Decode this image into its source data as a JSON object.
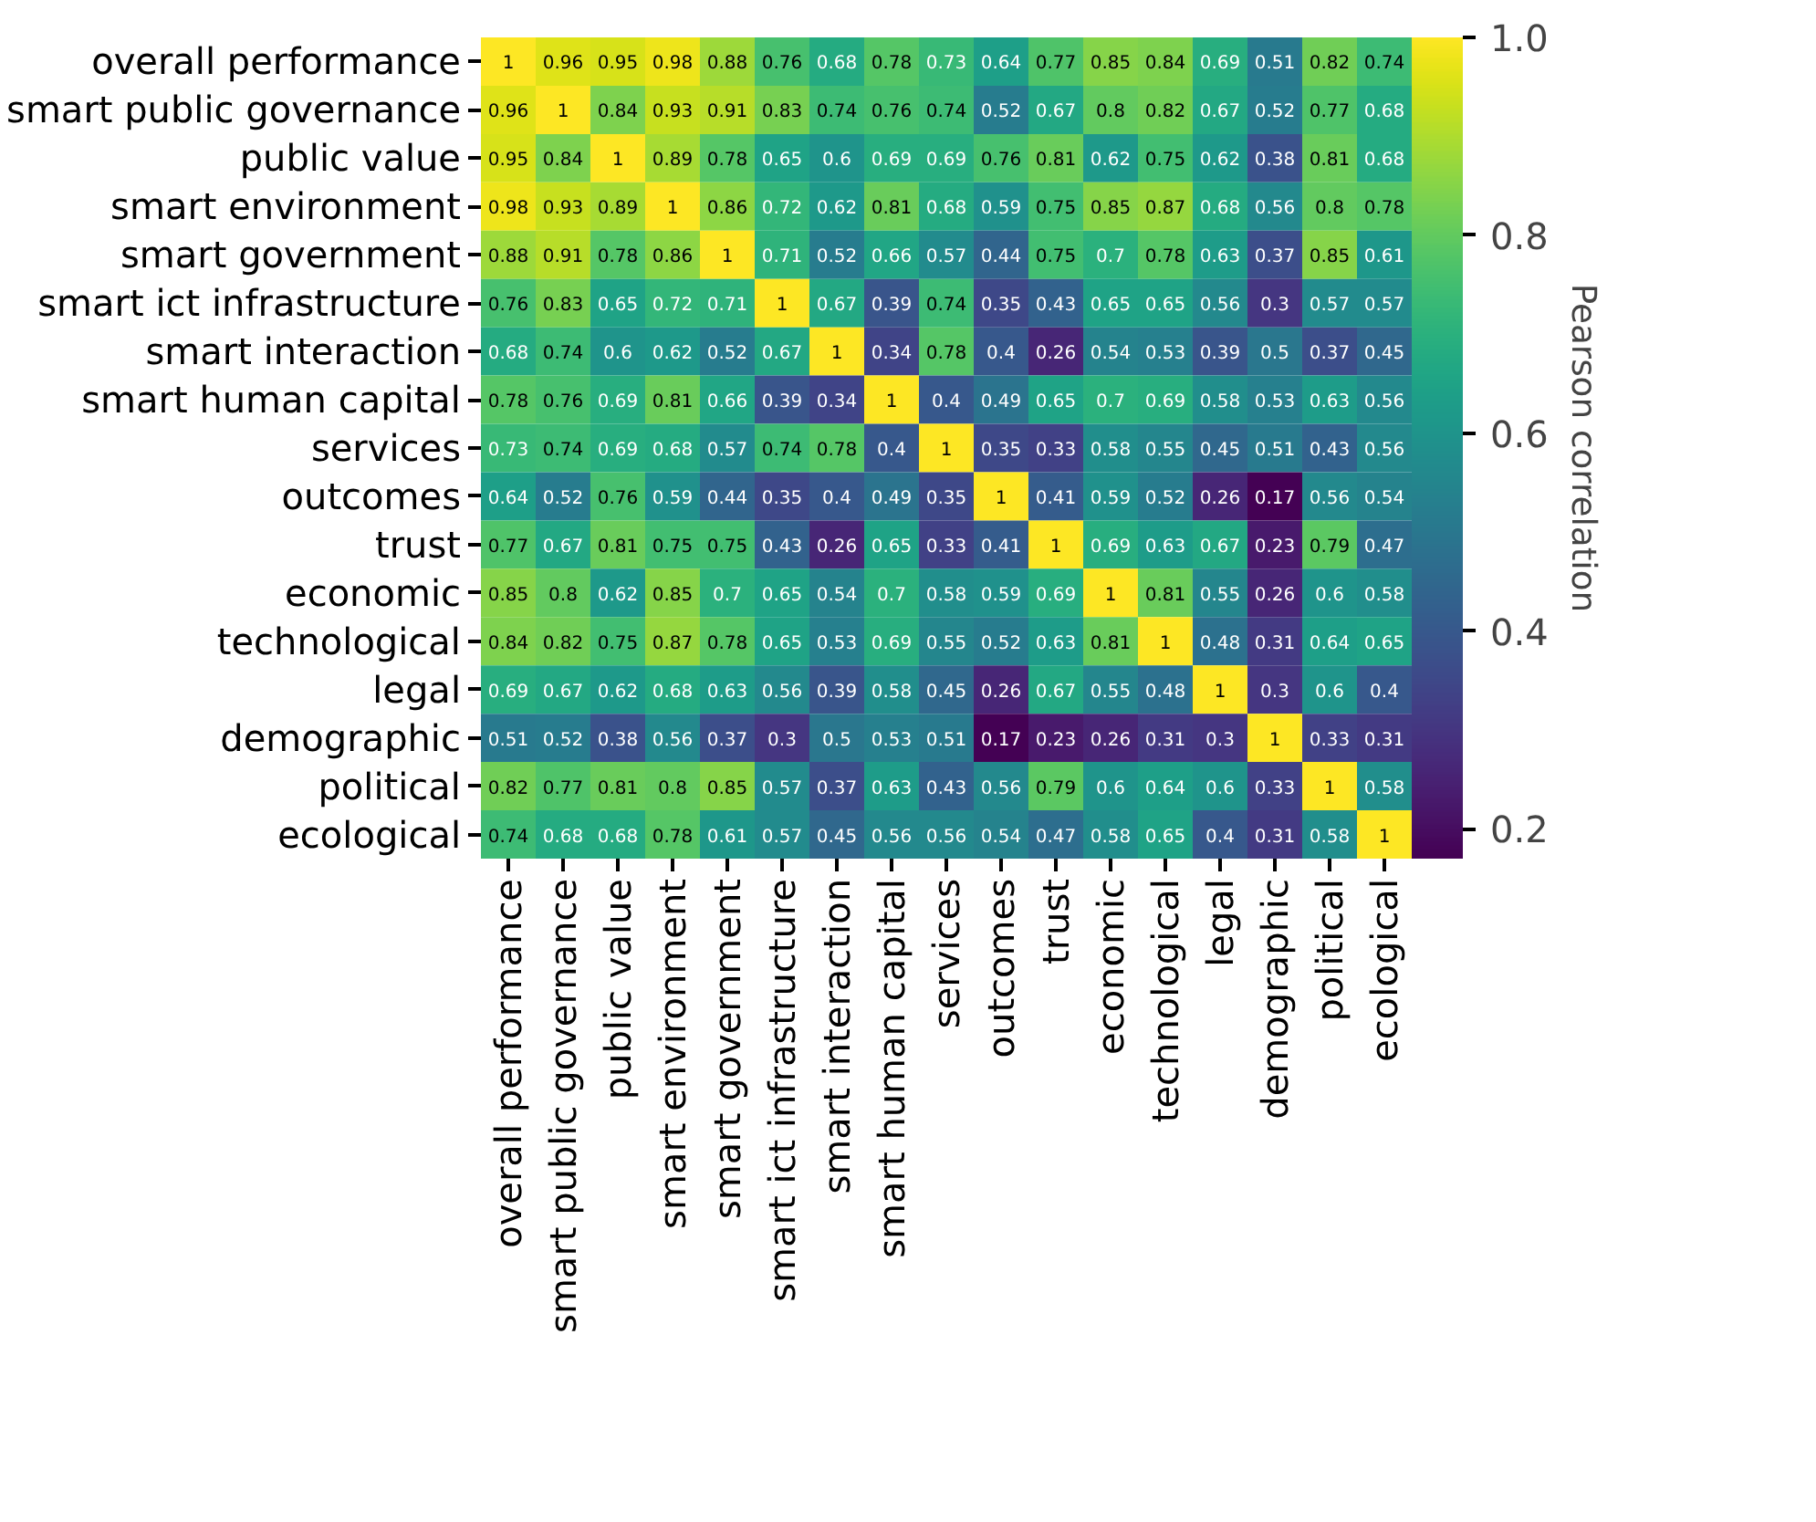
{
  "chart_data": {
    "type": "heatmap",
    "categories": [
      "overall performance",
      "smart public governance",
      "public value",
      "smart environment",
      "smart government",
      "smart ict infrastructure",
      "smart interaction",
      "smart human capital",
      "services",
      "outcomes",
      "trust",
      "economic",
      "technological",
      "legal",
      "demographic",
      "political",
      "ecological"
    ],
    "y_categories": [
      "overall performance",
      "smart public governance",
      "public value",
      "smart environment",
      "smart government",
      "smart ict infrastructure",
      "smart interaction",
      "smart human capital",
      "services",
      "outcomes",
      "trust",
      "economic",
      "technological",
      "legal",
      "demographic",
      "political",
      "ecological"
    ],
    "cells": [
      [
        1,
        0.96,
        0.95,
        0.98,
        0.88,
        0.76,
        0.68,
        0.78,
        0.73,
        0.64,
        0.77,
        0.85,
        0.84,
        0.69,
        0.51,
        0.82,
        0.74
      ],
      [
        0.96,
        1,
        0.84,
        0.93,
        0.91,
        0.83,
        0.74,
        0.76,
        0.74,
        0.52,
        0.67,
        0.8,
        0.82,
        0.67,
        0.52,
        0.77,
        0.68
      ],
      [
        0.95,
        0.84,
        1,
        0.89,
        0.78,
        0.65,
        0.6,
        0.69,
        0.69,
        0.76,
        0.81,
        0.62,
        0.75,
        0.62,
        0.38,
        0.81,
        0.68
      ],
      [
        0.98,
        0.93,
        0.89,
        1,
        0.86,
        0.72,
        0.62,
        0.81,
        0.68,
        0.59,
        0.75,
        0.85,
        0.87,
        0.68,
        0.56,
        0.8,
        0.78
      ],
      [
        0.88,
        0.91,
        0.78,
        0.86,
        1,
        0.71,
        0.52,
        0.66,
        0.57,
        0.44,
        0.75,
        0.7,
        0.78,
        0.63,
        0.37,
        0.85,
        0.61
      ],
      [
        0.76,
        0.83,
        0.65,
        0.72,
        0.71,
        1,
        0.67,
        0.39,
        0.74,
        0.35,
        0.43,
        0.65,
        0.65,
        0.56,
        0.3,
        0.57,
        0.57
      ],
      [
        0.68,
        0.74,
        0.6,
        0.62,
        0.52,
        0.67,
        1,
        0.34,
        0.78,
        0.4,
        0.26,
        0.54,
        0.53,
        0.39,
        0.5,
        0.37,
        0.45
      ],
      [
        0.78,
        0.76,
        0.69,
        0.81,
        0.66,
        0.39,
        0.34,
        1,
        0.4,
        0.49,
        0.65,
        0.7,
        0.69,
        0.58,
        0.53,
        0.63,
        0.56
      ],
      [
        0.73,
        0.74,
        0.69,
        0.68,
        0.57,
        0.74,
        0.78,
        0.4,
        1,
        0.35,
        0.33,
        0.58,
        0.55,
        0.45,
        0.51,
        0.43,
        0.56
      ],
      [
        0.64,
        0.52,
        0.76,
        0.59,
        0.44,
        0.35,
        0.4,
        0.49,
        0.35,
        1,
        0.41,
        0.59,
        0.52,
        0.26,
        0.17,
        0.56,
        0.54
      ],
      [
        0.77,
        0.67,
        0.81,
        0.75,
        0.75,
        0.43,
        0.26,
        0.65,
        0.33,
        0.41,
        1,
        0.69,
        0.63,
        0.67,
        0.23,
        0.79,
        0.47
      ],
      [
        0.85,
        0.8,
        0.62,
        0.85,
        0.7,
        0.65,
        0.54,
        0.7,
        0.58,
        0.59,
        0.69,
        1,
        0.81,
        0.55,
        0.26,
        0.6,
        0.58
      ],
      [
        0.84,
        0.82,
        0.75,
        0.87,
        0.78,
        0.65,
        0.53,
        0.69,
        0.55,
        0.52,
        0.63,
        0.81,
        1,
        0.48,
        0.31,
        0.64,
        0.65
      ],
      [
        0.69,
        0.67,
        0.62,
        0.68,
        0.63,
        0.56,
        0.39,
        0.58,
        0.45,
        0.26,
        0.67,
        0.55,
        0.48,
        1,
        0.3,
        0.6,
        0.4
      ],
      [
        0.51,
        0.52,
        0.38,
        0.56,
        0.37,
        0.3,
        0.5,
        0.53,
        0.51,
        0.17,
        0.23,
        0.26,
        0.31,
        0.3,
        1,
        0.33,
        0.31
      ],
      [
        0.82,
        0.77,
        0.81,
        0.8,
        0.85,
        0.57,
        0.37,
        0.63,
        0.43,
        0.56,
        0.79,
        0.6,
        0.64,
        0.6,
        0.33,
        1,
        0.58
      ],
      [
        0.74,
        0.68,
        0.68,
        0.78,
        0.61,
        0.57,
        0.45,
        0.56,
        0.56,
        0.54,
        0.47,
        0.58,
        0.65,
        0.4,
        0.31,
        0.58,
        1
      ]
    ],
    "clim": [
      0.17,
      1
    ],
    "cticks": [
      0.2,
      0.4,
      0.6,
      0.8,
      {
        "value": 1,
        "label": "1.0"
      }
    ],
    "clabel": "Pearson correlation",
    "data_labels": true
  }
}
